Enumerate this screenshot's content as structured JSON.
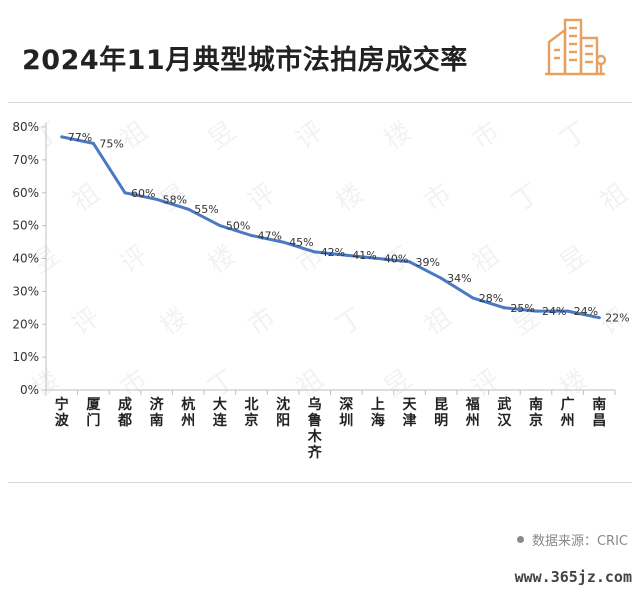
{
  "page": {
    "title": "2024年11月典型城市法拍房成交率",
    "source_label": "数据来源：CRIC",
    "watermark_url": "www.365jz.com",
    "watermark_text": [
      "丁",
      "祖",
      "昱",
      "评",
      "楼",
      "市"
    ],
    "accent_color": "#e8a060",
    "line_color": "#4a78c2"
  },
  "chart_data": {
    "type": "line",
    "title": "2024年11月典型城市法拍房成交率",
    "xlabel": "",
    "ylabel": "",
    "ylim": [
      0,
      80
    ],
    "yticks": [
      "0%",
      "10%",
      "20%",
      "30%",
      "40%",
      "50%",
      "60%",
      "70%",
      "80%"
    ],
    "grid": false,
    "legend": "none",
    "categories": [
      "宁波",
      "厦门",
      "成都",
      "济南",
      "杭州",
      "大连",
      "北京",
      "沈阳",
      "乌鲁木齐",
      "深圳",
      "上海",
      "天津",
      "昆明",
      "福州",
      "武汉",
      "南京",
      "广州",
      "南昌"
    ],
    "series": [
      {
        "values": [
          77,
          75,
          60,
          58,
          55,
          50,
          47,
          45,
          42,
          41,
          40,
          39,
          34,
          28,
          25,
          24,
          24,
          22
        ]
      }
    ],
    "data_labels": [
      "77%",
      "75%",
      "60%",
      "58%",
      "55%",
      "50%",
      "47%",
      "45%",
      "42%",
      "41%",
      "40%",
      "39%",
      "34%",
      "28%",
      "25%",
      "24%",
      "24%",
      "22%"
    ]
  }
}
